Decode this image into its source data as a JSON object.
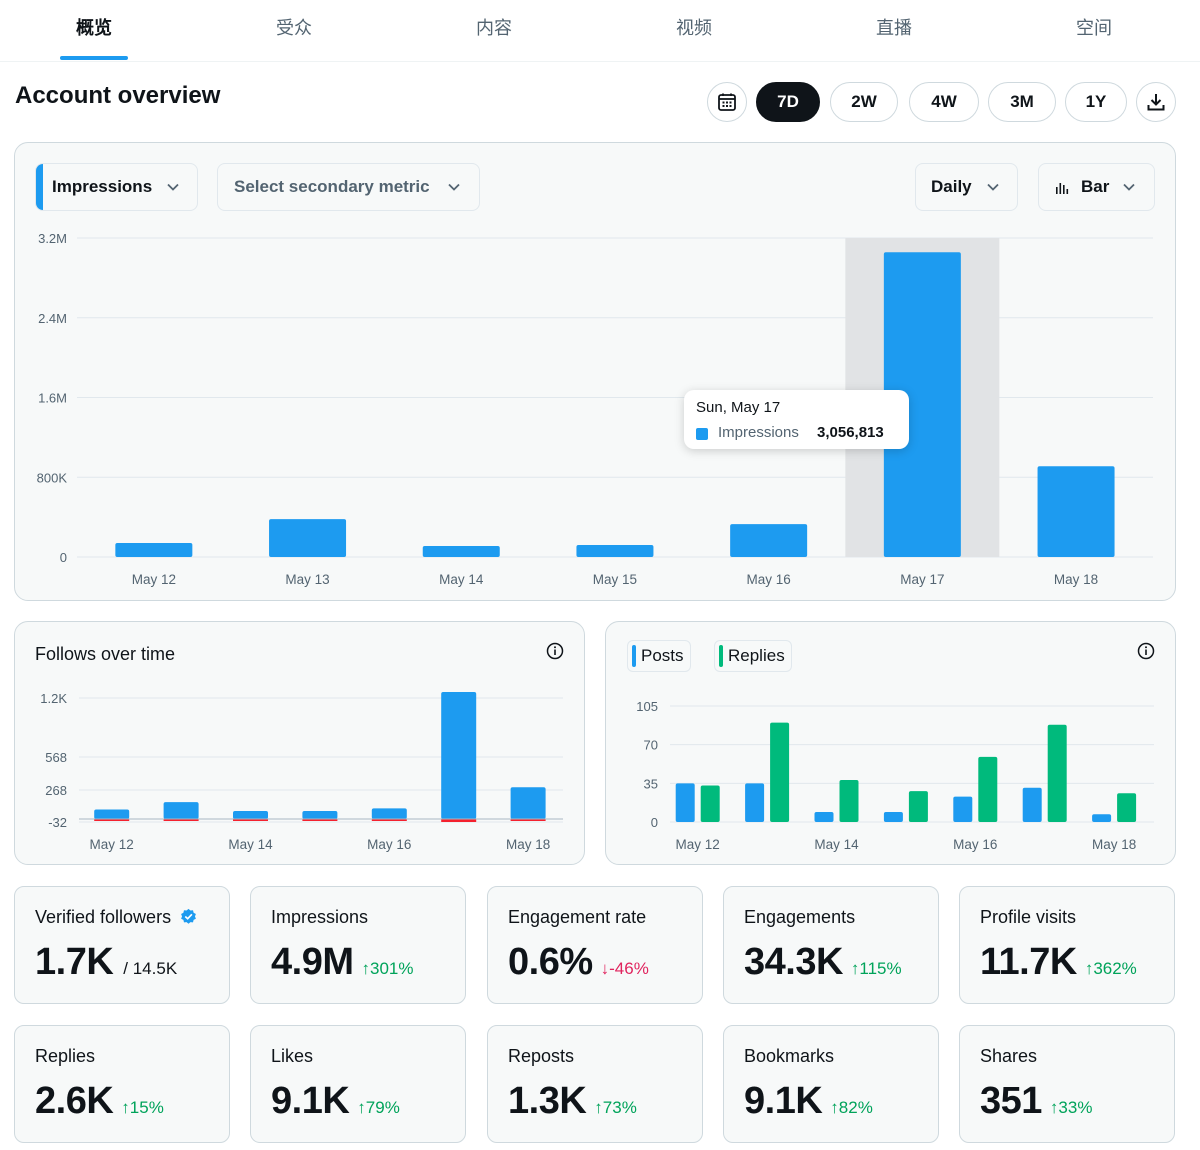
{
  "tabs": [
    {
      "label": "概览",
      "active": true
    },
    {
      "label": "受众",
      "active": false
    },
    {
      "label": "内容",
      "active": false
    },
    {
      "label": "视频",
      "active": false
    },
    {
      "label": "直播",
      "active": false
    },
    {
      "label": "空间",
      "active": false
    }
  ],
  "header": {
    "title": "Account overview",
    "ranges": [
      {
        "label": "7D",
        "active": true
      },
      {
        "label": "2W",
        "active": false
      },
      {
        "label": "4W",
        "active": false
      },
      {
        "label": "3M",
        "active": false
      },
      {
        "label": "1Y",
        "active": false
      }
    ]
  },
  "main_chart": {
    "primary_metric": "Impressions",
    "secondary_metric_placeholder": "Select secondary metric",
    "granularity": "Daily",
    "chart_type_label": "Bar",
    "tooltip": {
      "date": "Sun, May 17",
      "series": "Impressions",
      "value": "3,056,813"
    }
  },
  "follows_chart": {
    "title": "Follows over time"
  },
  "posts_chart": {
    "legend": [
      "Posts",
      "Replies"
    ]
  },
  "metrics": [
    {
      "label": "Verified followers",
      "value": "1.7K",
      "sub": "/ 14.5K",
      "verified": true
    },
    {
      "label": "Impressions",
      "value": "4.9M",
      "change": "↑301%",
      "dir": "up"
    },
    {
      "label": "Engagement rate",
      "value": "0.6%",
      "change": "↓-46%",
      "dir": "down"
    },
    {
      "label": "Engagements",
      "value": "34.3K",
      "change": "↑115%",
      "dir": "up"
    },
    {
      "label": "Profile visits",
      "value": "11.7K",
      "change": "↑362%",
      "dir": "up"
    },
    {
      "label": "Replies",
      "value": "2.6K",
      "change": "↑15%",
      "dir": "up"
    },
    {
      "label": "Likes",
      "value": "9.1K",
      "change": "↑79%",
      "dir": "up"
    },
    {
      "label": "Reposts",
      "value": "1.3K",
      "change": "↑73%",
      "dir": "up"
    },
    {
      "label": "Bookmarks",
      "value": "9.1K",
      "change": "↑82%",
      "dir": "up"
    },
    {
      "label": "Shares",
      "value": "351",
      "change": "↑33%",
      "dir": "up"
    }
  ],
  "colors": {
    "accent": "#1d9bf0",
    "green": "#00ba7c",
    "red": "#f4212e",
    "highlight": "#e1e3e5"
  },
  "chart_data": [
    {
      "type": "bar",
      "categories": [
        "May 12",
        "May 13",
        "May 14",
        "May 15",
        "May 16",
        "May 17",
        "May 18"
      ],
      "series": [
        {
          "name": "Impressions",
          "values": [
            140000,
            380000,
            110000,
            120000,
            330000,
            3056813,
            910000
          ]
        }
      ],
      "y_ticks": [
        "3.2M",
        "2.4M",
        "1.6M",
        "800K",
        "0"
      ],
      "ylim": [
        0,
        3200000
      ],
      "highlighted_category": "May 17",
      "grid": true
    },
    {
      "type": "bar",
      "categories": [
        "May 12",
        "May 13",
        "May 14",
        "May 15",
        "May 16",
        "May 17",
        "May 18"
      ],
      "x_tick_labels": [
        "May 12",
        "May 14",
        "May 16",
        "May 18"
      ],
      "series": [
        {
          "name": "",
          "values": [
            90,
            160,
            70,
            60,
            100,
            1200,
            300
          ]
        },
        {
          "name": "",
          "values": [
            -10,
            -20,
            -10,
            -10,
            -10,
            -30,
            -10
          ]
        }
      ],
      "y_ticks": [
        "1.2K",
        "568",
        "268",
        "-32"
      ],
      "ylim": [
        -32,
        1200
      ],
      "grid": true
    },
    {
      "type": "bar",
      "categories": [
        "May 12",
        "May 13",
        "May 14",
        "May 15",
        "May 16",
        "May 17",
        "May 18"
      ],
      "x_tick_labels": [
        "May 12",
        "May 14",
        "May 16",
        "May 18"
      ],
      "series": [
        {
          "name": "Posts",
          "values": [
            35,
            35,
            9,
            9,
            23,
            31,
            7
          ]
        },
        {
          "name": "Replies",
          "values": [
            33,
            90,
            38,
            28,
            59,
            88,
            26
          ]
        }
      ],
      "y_ticks": [
        "105",
        "70",
        "35",
        "0"
      ],
      "ylim": [
        0,
        105
      ],
      "grid": true
    }
  ]
}
